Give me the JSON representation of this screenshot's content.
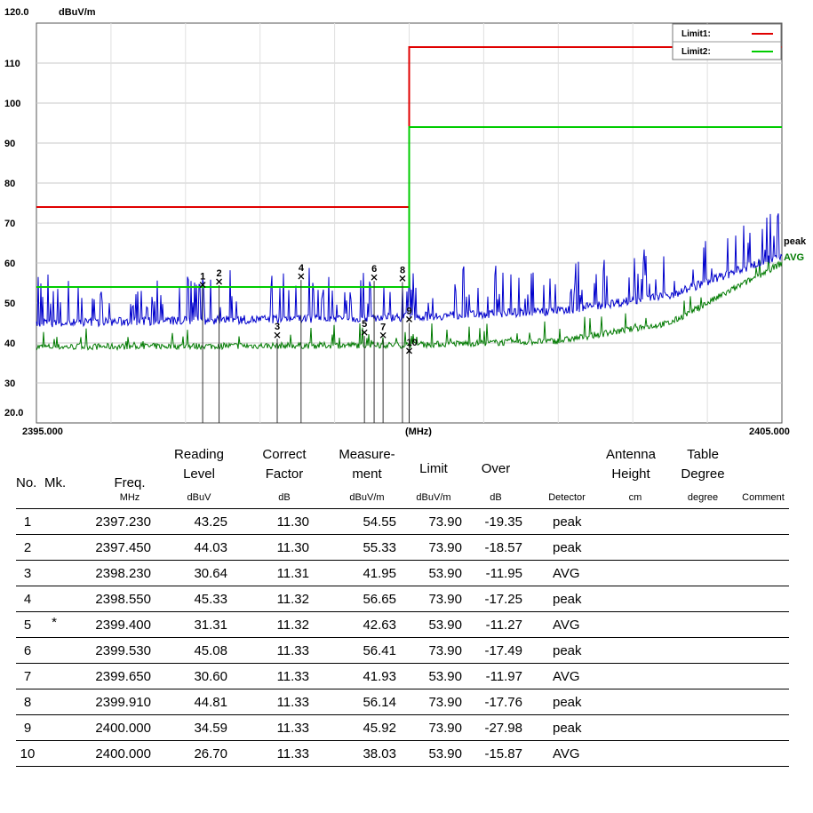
{
  "chart_data": {
    "type": "line",
    "y_unit": "dBuV/m",
    "x_unit": "(MHz)",
    "x_start_label": "2395.000",
    "x_end_label": "2405.000",
    "xlim": [
      2395.0,
      2405.0
    ],
    "ylim": [
      20.0,
      120.0
    ],
    "y_top_label": "120.0",
    "y_bottom_label": "20.0",
    "y_ticks": [
      110,
      100,
      90,
      80,
      70,
      60,
      50,
      40,
      30
    ],
    "grid": true,
    "legend": [
      "Limit1:",
      "Limit2:"
    ],
    "legend_position": "top-right",
    "limits": [
      {
        "name": "Limit1:",
        "color": "#e00000",
        "segments": [
          [
            2395.0,
            2400.0,
            74.0
          ],
          [
            2400.0,
            2405.0,
            114.0
          ]
        ]
      },
      {
        "name": "Limit2:",
        "color": "#00cc00",
        "segments": [
          [
            2395.0,
            2400.0,
            54.0
          ],
          [
            2400.0,
            2405.0,
            94.0
          ]
        ]
      }
    ],
    "trace_labels": [
      {
        "name": "peak",
        "color": "#000000"
      },
      {
        "name": "AVG",
        "color": "#007a00"
      }
    ],
    "series": [
      {
        "name": "peak",
        "color": "#0000cc",
        "baseline": [
          [
            2395.0,
            45
          ],
          [
            2400.0,
            46.5
          ],
          [
            2402.0,
            48
          ],
          [
            2403.5,
            52
          ],
          [
            2405.0,
            62
          ]
        ]
      },
      {
        "name": "AVG",
        "color": "#007a00",
        "baseline": [
          [
            2395.0,
            39
          ],
          [
            2400.0,
            39.5
          ],
          [
            2402.0,
            40.5
          ],
          [
            2403.5,
            45
          ],
          [
            2405.0,
            60
          ]
        ]
      }
    ],
    "markers": [
      {
        "n": "1",
        "x": 2397.23,
        "y": 54.55
      },
      {
        "n": "2",
        "x": 2397.45,
        "y": 55.33
      },
      {
        "n": "3",
        "x": 2398.23,
        "y": 41.95
      },
      {
        "n": "4",
        "x": 2398.55,
        "y": 56.65
      },
      {
        "n": "5",
        "x": 2399.4,
        "y": 42.63
      },
      {
        "n": "6",
        "x": 2399.53,
        "y": 56.41
      },
      {
        "n": "7",
        "x": 2399.65,
        "y": 41.93
      },
      {
        "n": "8",
        "x": 2399.91,
        "y": 56.14
      },
      {
        "n": "9",
        "x": 2400.0,
        "y": 45.92
      },
      {
        "n": "10",
        "x": 2400.0,
        "y": 38.03
      }
    ]
  },
  "table": {
    "headers": {
      "no": "No.",
      "mk": "Mk.",
      "freq": "Freq.",
      "reading_1": "Reading",
      "reading_2": "Level",
      "correct_1": "Correct",
      "correct_2": "Factor",
      "measure_1": "Measure-",
      "measure_2": "ment",
      "limit": "Limit",
      "over": "Over",
      "antenna_1": "Antenna",
      "antenna_2": "Height",
      "table_1": "Table",
      "table_2": "Degree"
    },
    "units": {
      "freq": "MHz",
      "reading": "dBuV",
      "correct": "dB",
      "measure": "dBuV/m",
      "limit": "dBuV/m",
      "over": "dB",
      "detector": "Detector",
      "antenna": "cm",
      "table": "degree",
      "comment": "Comment"
    },
    "rows": [
      {
        "no": "1",
        "mk": "",
        "freq": "2397.230",
        "reading": "43.25",
        "correct": "11.30",
        "measure": "54.55",
        "limit": "73.90",
        "over": "-19.35",
        "detector": "peak"
      },
      {
        "no": "2",
        "mk": "",
        "freq": "2397.450",
        "reading": "44.03",
        "correct": "11.30",
        "measure": "55.33",
        "limit": "73.90",
        "over": "-18.57",
        "detector": "peak"
      },
      {
        "no": "3",
        "mk": "",
        "freq": "2398.230",
        "reading": "30.64",
        "correct": "11.31",
        "measure": "41.95",
        "limit": "53.90",
        "over": "-11.95",
        "detector": "AVG"
      },
      {
        "no": "4",
        "mk": "",
        "freq": "2398.550",
        "reading": "45.33",
        "correct": "11.32",
        "measure": "56.65",
        "limit": "73.90",
        "over": "-17.25",
        "detector": "peak"
      },
      {
        "no": "5",
        "mk": "*",
        "freq": "2399.400",
        "reading": "31.31",
        "correct": "11.32",
        "measure": "42.63",
        "limit": "53.90",
        "over": "-11.27",
        "detector": "AVG"
      },
      {
        "no": "6",
        "mk": "",
        "freq": "2399.530",
        "reading": "45.08",
        "correct": "11.33",
        "measure": "56.41",
        "limit": "73.90",
        "over": "-17.49",
        "detector": "peak"
      },
      {
        "no": "7",
        "mk": "",
        "freq": "2399.650",
        "reading": "30.60",
        "correct": "11.33",
        "measure": "41.93",
        "limit": "53.90",
        "over": "-11.97",
        "detector": "AVG"
      },
      {
        "no": "8",
        "mk": "",
        "freq": "2399.910",
        "reading": "44.81",
        "correct": "11.33",
        "measure": "56.14",
        "limit": "73.90",
        "over": "-17.76",
        "detector": "peak"
      },
      {
        "no": "9",
        "mk": "",
        "freq": "2400.000",
        "reading": "34.59",
        "correct": "11.33",
        "measure": "45.92",
        "limit": "73.90",
        "over": "-27.98",
        "detector": "peak"
      },
      {
        "no": "10",
        "mk": "",
        "freq": "2400.000",
        "reading": "26.70",
        "correct": "11.33",
        "measure": "38.03",
        "limit": "53.90",
        "over": "-15.87",
        "detector": "AVG"
      }
    ]
  }
}
